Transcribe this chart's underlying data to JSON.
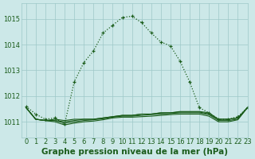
{
  "title": "Graphe pression niveau de la mer (hPa)",
  "bg_color": "#cce8e8",
  "plot_bg_color": "#cce8e8",
  "line_color": "#1a5c1a",
  "grid_color": "#9dc8c8",
  "xlim": [
    -0.5,
    23
  ],
  "ylim": [
    1010.4,
    1015.6
  ],
  "yticks": [
    1011,
    1012,
    1013,
    1014,
    1015
  ],
  "xticks": [
    0,
    1,
    2,
    3,
    4,
    5,
    6,
    7,
    8,
    9,
    10,
    11,
    12,
    13,
    14,
    15,
    16,
    17,
    18,
    19,
    20,
    21,
    22,
    23
  ],
  "main_x": [
    0,
    1,
    2,
    3,
    4,
    5,
    6,
    7,
    8,
    9,
    10,
    11,
    12,
    13,
    14,
    15,
    16,
    17,
    18,
    19,
    20,
    21,
    22,
    23
  ],
  "main_y": [
    1011.6,
    1011.3,
    1011.1,
    1011.15,
    1010.9,
    1012.55,
    1013.3,
    1013.75,
    1014.45,
    1014.75,
    1015.05,
    1015.1,
    1014.85,
    1014.45,
    1014.1,
    1013.95,
    1013.35,
    1012.55,
    1011.55,
    1011.35,
    1011.1,
    1011.1,
    1011.2,
    1011.55
  ],
  "flat1_x": [
    0,
    1,
    2,
    3,
    4,
    5,
    6,
    7,
    8,
    9,
    10,
    11,
    12,
    13,
    14,
    15,
    16,
    17,
    18,
    19,
    20,
    21,
    22,
    23
  ],
  "flat1_y": [
    1011.55,
    1011.1,
    1011.05,
    1011.1,
    1011.05,
    1011.1,
    1011.1,
    1011.1,
    1011.15,
    1011.2,
    1011.25,
    1011.25,
    1011.3,
    1011.3,
    1011.35,
    1011.35,
    1011.4,
    1011.4,
    1011.4,
    1011.35,
    1011.1,
    1011.1,
    1011.15,
    1011.55
  ],
  "flat2_x": [
    0,
    1,
    2,
    3,
    4,
    5,
    6,
    7,
    8,
    9,
    10,
    11,
    12,
    13,
    14,
    15,
    16,
    17,
    18,
    19,
    20,
    21,
    22,
    23
  ],
  "flat2_y": [
    1011.55,
    1011.1,
    1011.05,
    1011.05,
    1011.0,
    1011.05,
    1011.1,
    1011.1,
    1011.15,
    1011.2,
    1011.25,
    1011.25,
    1011.3,
    1011.3,
    1011.35,
    1011.35,
    1011.38,
    1011.38,
    1011.38,
    1011.3,
    1011.1,
    1011.1,
    1011.15,
    1011.55
  ],
  "flat3_x": [
    0,
    1,
    2,
    3,
    4,
    5,
    6,
    7,
    8,
    9,
    10,
    11,
    12,
    13,
    14,
    15,
    16,
    17,
    18,
    19,
    20,
    21,
    22,
    23
  ],
  "flat3_y": [
    1011.55,
    1011.1,
    1011.05,
    1011.05,
    1010.95,
    1011.0,
    1011.05,
    1011.08,
    1011.12,
    1011.18,
    1011.22,
    1011.22,
    1011.25,
    1011.28,
    1011.3,
    1011.32,
    1011.35,
    1011.35,
    1011.35,
    1011.28,
    1011.05,
    1011.05,
    1011.1,
    1011.55
  ],
  "flat4_x": [
    0,
    1,
    2,
    3,
    4,
    5,
    6,
    7,
    8,
    9,
    10,
    11,
    12,
    13,
    14,
    15,
    16,
    17,
    18,
    19,
    20,
    21,
    22,
    23
  ],
  "flat4_y": [
    1011.55,
    1011.1,
    1011.05,
    1011.0,
    1010.88,
    1010.95,
    1011.0,
    1011.03,
    1011.08,
    1011.15,
    1011.18,
    1011.18,
    1011.2,
    1011.22,
    1011.25,
    1011.28,
    1011.3,
    1011.3,
    1011.3,
    1011.22,
    1011.0,
    1011.0,
    1011.08,
    1011.55
  ],
  "title_fontsize": 7.5,
  "tick_fontsize": 6
}
